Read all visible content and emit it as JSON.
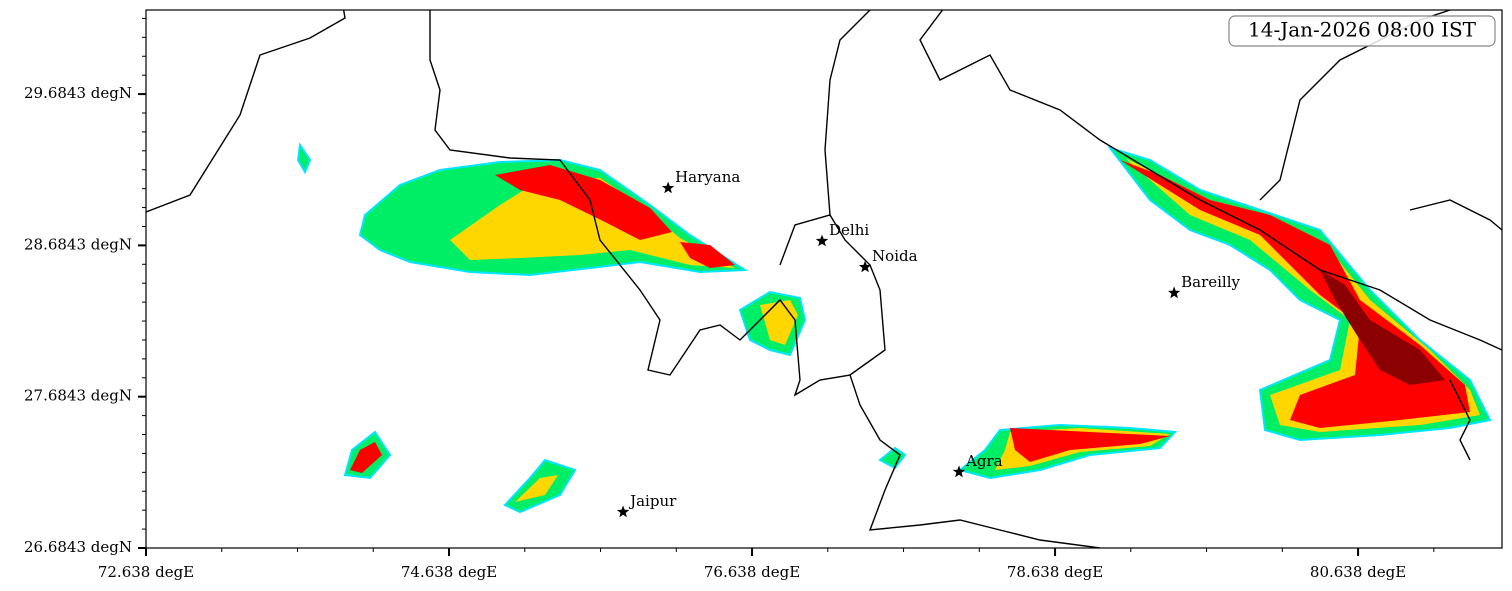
{
  "map": {
    "timestamp": "14-Jan-2026 08:00 IST",
    "xlim": [
      72.638,
      81.588
    ],
    "ylim": [
      26.6843,
      30.24
    ],
    "xticks": [
      {
        "value": 72.638,
        "label": "72.638 degE"
      },
      {
        "value": 74.638,
        "label": "74.638 degE"
      },
      {
        "value": 76.638,
        "label": "76.638 degE"
      },
      {
        "value": 78.638,
        "label": "78.638 degE"
      },
      {
        "value": 80.638,
        "label": "80.638 degE"
      }
    ],
    "yticks": [
      {
        "value": 26.6843,
        "label": "26.6843 degN"
      },
      {
        "value": 27.6843,
        "label": "27.6843 degN"
      },
      {
        "value": 28.6843,
        "label": "28.6843 degN"
      },
      {
        "value": 29.6843,
        "label": "29.6843 degN"
      }
    ],
    "cities": [
      {
        "name": "Haryana",
        "lon": 76.084,
        "lat": 29.063
      },
      {
        "name": "Delhi",
        "lon": 77.1,
        "lat": 28.713
      },
      {
        "name": "Noida",
        "lon": 77.384,
        "lat": 28.541
      },
      {
        "name": "Bareilly",
        "lon": 79.424,
        "lat": 28.37
      },
      {
        "name": "Agra",
        "lon": 78.004,
        "lat": 27.187
      },
      {
        "name": "Jaipur",
        "lon": 75.787,
        "lat": 26.922
      }
    ]
  }
}
